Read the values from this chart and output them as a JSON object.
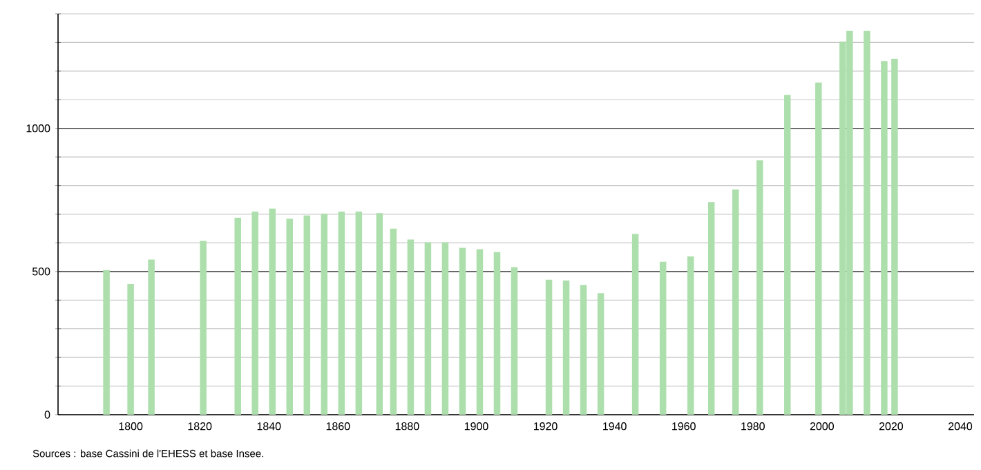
{
  "chart_data": {
    "type": "bar",
    "x": [
      1793,
      1800,
      1806,
      1821,
      1831,
      1836,
      1841,
      1846,
      1851,
      1856,
      1861,
      1866,
      1872,
      1876,
      1881,
      1886,
      1891,
      1896,
      1901,
      1906,
      1911,
      1921,
      1926,
      1931,
      1936,
      1946,
      1954,
      1962,
      1968,
      1975,
      1982,
      1990,
      1999,
      2006,
      2008,
      2013,
      2018,
      2021
    ],
    "values": [
      505,
      456,
      542,
      607,
      688,
      709,
      720,
      684,
      696,
      702,
      709,
      709,
      704,
      650,
      612,
      602,
      602,
      583,
      578,
      568,
      515,
      471,
      469,
      453,
      424,
      631,
      534,
      553,
      743,
      786,
      888,
      1117,
      1160,
      1303,
      1340,
      1340,
      1235,
      1243
    ],
    "color": "#addfad",
    "xlim": [
      1779,
      2044
    ],
    "xticks": [
      1800,
      1820,
      1840,
      1860,
      1880,
      1900,
      1920,
      1940,
      1960,
      1980,
      2000,
      2020,
      2040
    ],
    "ylim": [
      0,
      1400
    ],
    "yticks": [
      0,
      {
        "value": 100,
        "label": null
      },
      {
        "value": 200,
        "label": null
      },
      {
        "value": 300,
        "label": null
      },
      {
        "value": 400,
        "label": null
      },
      500,
      {
        "value": 600,
        "label": null
      },
      {
        "value": 700,
        "label": null
      },
      {
        "value": 800,
        "label": null
      },
      {
        "value": 900,
        "label": null
      },
      1000,
      {
        "value": 1100,
        "label": null
      },
      {
        "value": 1200,
        "label": null
      },
      {
        "value": 1300,
        "label": null
      },
      {
        "value": 1400,
        "label": null
      }
    ],
    "grid": "y",
    "annotations": [
      "Sources : base Cassini de l'EHESS et base Insee."
    ]
  }
}
